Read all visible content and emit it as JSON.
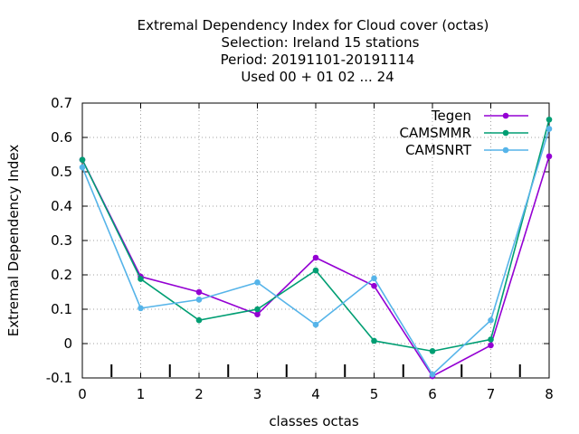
{
  "chart_data": {
    "type": "line",
    "title_lines": [
      "Extremal Dependency Index  for Cloud cover (octas)",
      "Selection: Ireland     15 stations",
      "Period: 20191101-20191114",
      "Used  00 + 01 02 ... 24"
    ],
    "xlabel": "classes octas",
    "ylabel": "Extremal Dependency Index",
    "x": [
      0,
      1,
      2,
      3,
      4,
      5,
      6,
      7,
      8
    ],
    "xlim": [
      0,
      8
    ],
    "ylim": [
      -0.1,
      0.7
    ],
    "xticks": [
      0,
      1,
      2,
      3,
      4,
      5,
      6,
      7,
      8
    ],
    "xtick_labels": [
      "0",
      "1",
      "2",
      "3",
      "4",
      "5",
      "6",
      "7",
      "8"
    ],
    "yticks": [
      -0.1,
      0,
      0.1,
      0.2,
      0.3,
      0.4,
      0.5,
      0.6,
      0.7
    ],
    "ytick_labels": [
      "-0.1",
      "0",
      "0.1",
      "0.2",
      "0.3",
      "0.4",
      "0.5",
      "0.6",
      "0.7"
    ],
    "minor_bottom_marks": [
      0.5,
      1.5,
      2.5,
      3.5,
      4.5,
      5.5,
      6.5,
      7.5
    ],
    "grid": true,
    "legend_position": "top-right",
    "series": [
      {
        "name": "Tegen",
        "color": "#9400d3",
        "values": [
          0.535,
          0.195,
          0.15,
          0.085,
          0.25,
          0.168,
          -0.095,
          -0.005,
          0.545
        ]
      },
      {
        "name": "CAMSMMR",
        "color": "#009e73",
        "values": [
          0.535,
          0.188,
          0.068,
          0.1,
          0.213,
          0.008,
          -0.022,
          0.012,
          0.652
        ]
      },
      {
        "name": "CAMSNRT",
        "color": "#56b4e9",
        "values": [
          0.513,
          0.103,
          0.128,
          0.178,
          0.055,
          0.19,
          -0.09,
          0.068,
          0.625
        ]
      }
    ]
  }
}
